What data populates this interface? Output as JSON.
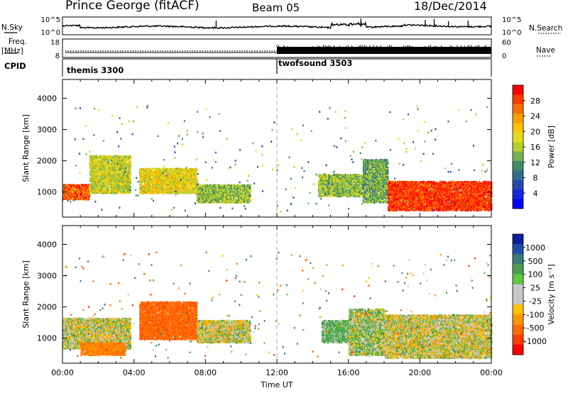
{
  "header": {
    "station": "Prince George (fitACF)",
    "beam": "Beam 05",
    "date": "18/Dec/2014"
  },
  "left_labels": {
    "nsky": "N.Sky",
    "freq": "Freq.",
    "mhz": "[MHz]",
    "cpid": "CPID"
  },
  "right_labels": {
    "nsearch": "N.Search",
    "nave": "Nave"
  },
  "cpid_segments": [
    {
      "name": "themis 3300",
      "start_hour": 0
    },
    {
      "name": "twofsound 3503",
      "start_hour": 12
    }
  ],
  "chart_data": [
    {
      "panel": "noise",
      "type": "line",
      "x_range_hours": [
        0,
        24
      ],
      "left_axis_ticks": [
        "10^5",
        "10^0"
      ],
      "right_axis_ticks": [
        "10^5",
        "10^0"
      ],
      "series": [
        {
          "name": "N.Sky",
          "style": "solid"
        },
        {
          "name": "N.Search",
          "style": "dotted"
        }
      ]
    },
    {
      "panel": "frequency",
      "type": "line",
      "x_range_hours": [
        0,
        24
      ],
      "left_axis_ticks": [
        "18",
        "8"
      ],
      "right_axis_ticks": [
        "60",
        "0"
      ],
      "series": [
        {
          "name": "Freq.",
          "style": "solid"
        },
        {
          "name": "Nave",
          "style": "dotted"
        }
      ]
    },
    {
      "panel": "power",
      "type": "heatmap",
      "ylabel": "Slant Range [km]",
      "yticks": [
        "4000",
        "3000",
        "2000",
        "1000"
      ],
      "ylim": [
        200,
        4600
      ],
      "x_range_hours": [
        0,
        24
      ],
      "colorbar": {
        "label": "Power [dB]",
        "ticks": [
          "28",
          "24",
          "20",
          "16",
          "12",
          "8",
          "4"
        ],
        "colors": [
          "#ff0000",
          "#ff3a00",
          "#ff6d00",
          "#ff9e00",
          "#ffc400",
          "#e8dc20",
          "#b4d22a",
          "#76b050",
          "#3f8a68",
          "#2e6e8c",
          "#2449b0",
          "#1428d8",
          "#0000ff"
        ]
      },
      "echo_regions": [
        {
          "t0": 0.0,
          "t1": 1.5,
          "r0": 800,
          "r1": 1300,
          "level": 26
        },
        {
          "t0": 1.5,
          "t1": 3.8,
          "r0": 1000,
          "r1": 2200,
          "level": 16
        },
        {
          "t0": 4.3,
          "t1": 7.5,
          "r0": 1000,
          "r1": 1800,
          "level": 18
        },
        {
          "t0": 7.5,
          "t1": 10.5,
          "r0": 700,
          "r1": 1300,
          "level": 14
        },
        {
          "t0": 14.3,
          "t1": 16.8,
          "r0": 900,
          "r1": 1600,
          "level": 14
        },
        {
          "t0": 16.8,
          "t1": 18.2,
          "r0": 700,
          "r1": 2100,
          "level": 12
        },
        {
          "t0": 18.2,
          "t1": 24.0,
          "r0": 450,
          "r1": 1400,
          "level": 28
        }
      ]
    },
    {
      "panel": "velocity",
      "type": "heatmap",
      "ylabel": "Slant Range [km]",
      "yticks": [
        "4000",
        "3000",
        "2000",
        "1000"
      ],
      "ylim": [
        200,
        4600
      ],
      "x_range_hours": [
        0,
        24
      ],
      "xticks": [
        "00:00",
        "04:00",
        "08:00",
        "12:00",
        "16:00",
        "20:00",
        "00:00"
      ],
      "xlabel": "Time UT",
      "colorbar": {
        "label": "Velocity [m s⁻¹]",
        "ticks": [
          "1000",
          "500",
          "100",
          "25",
          "-25",
          "-100",
          "-500",
          "-1000"
        ],
        "colors": [
          "#0a1e9e",
          "#1f4ea8",
          "#3a7a78",
          "#4a9e4a",
          "#5ec840",
          "#c8c8c8",
          "#c8c8c8",
          "#ffc000",
          "#ff9600",
          "#ff6e00",
          "#ff3c00",
          "#ff0000"
        ]
      },
      "echo_regions": [
        {
          "t0": 0.0,
          "t1": 3.8,
          "r0": 700,
          "r1": 1700,
          "level": 0
        },
        {
          "t0": 1.0,
          "t1": 3.5,
          "r0": 500,
          "r1": 900,
          "level": -250
        },
        {
          "t0": 4.3,
          "t1": 7.5,
          "r0": 1000,
          "r1": 2200,
          "level": -400
        },
        {
          "t0": 7.5,
          "t1": 10.5,
          "r0": 900,
          "r1": 1600,
          "level": 0
        },
        {
          "t0": 14.5,
          "t1": 16.2,
          "r0": 900,
          "r1": 1600,
          "level": 150
        },
        {
          "t0": 16.0,
          "t1": 18.0,
          "r0": 500,
          "r1": 2000,
          "level": 60
        },
        {
          "t0": 18.0,
          "t1": 24.0,
          "r0": 400,
          "r1": 1800,
          "level": 0
        }
      ]
    }
  ]
}
